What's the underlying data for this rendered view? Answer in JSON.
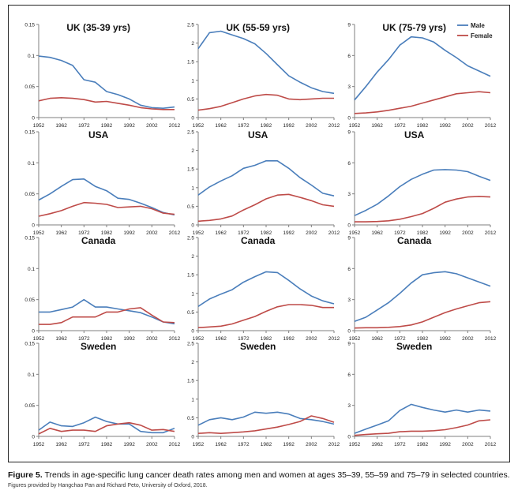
{
  "figure": {
    "caption_label": "Figure 5.",
    "caption_text": " Trends in age-specific lung cancer death rates among men and women at ages 35–39, 55–59 and 75–79 in selected countries.",
    "credit": "Figures provided by Hangchao Pan and Richard Peto, University of Oxford, 2018."
  },
  "colors": {
    "male": "#4a7ebb",
    "female": "#be4b48",
    "axis": "#7f7f7f"
  },
  "legend": {
    "male": "Male",
    "female": "Female"
  },
  "chart_data": [
    {
      "type": "line",
      "title": "UK (35-39 yrs)",
      "ylim": [
        0,
        0.15
      ],
      "yticks": [
        "0",
        "0.05",
        "0.1",
        "0.15"
      ],
      "xticks": [
        "1952",
        "1962",
        "1972",
        "1982",
        "1992",
        "2002",
        "2012"
      ],
      "x": [
        1952,
        1957,
        1962,
        1967,
        1972,
        1977,
        1982,
        1987,
        1992,
        1997,
        2002,
        2007,
        2012
      ],
      "series": [
        {
          "name": "Male",
          "values": [
            0.099,
            0.097,
            0.092,
            0.084,
            0.061,
            0.057,
            0.042,
            0.037,
            0.03,
            0.02,
            0.016,
            0.015,
            0.017
          ]
        },
        {
          "name": "Female",
          "values": [
            0.027,
            0.031,
            0.032,
            0.031,
            0.029,
            0.025,
            0.026,
            0.023,
            0.02,
            0.016,
            0.014,
            0.013,
            0.013
          ]
        }
      ]
    },
    {
      "type": "line",
      "title": "UK (55-59 yrs)",
      "ylim": [
        0,
        2.5
      ],
      "yticks": [
        "0",
        "0.5",
        "1",
        "1.5",
        "2",
        "2.5"
      ],
      "xticks": [
        "1952",
        "1962",
        "1972",
        "1982",
        "1992",
        "2002",
        "2012"
      ],
      "x": [
        1952,
        1957,
        1962,
        1967,
        1972,
        1977,
        1982,
        1987,
        1992,
        1997,
        2002,
        2007,
        2012
      ],
      "series": [
        {
          "name": "Male",
          "values": [
            1.85,
            2.28,
            2.32,
            2.22,
            2.12,
            1.98,
            1.72,
            1.42,
            1.12,
            0.95,
            0.8,
            0.7,
            0.65
          ]
        },
        {
          "name": "Female",
          "values": [
            0.2,
            0.24,
            0.3,
            0.4,
            0.5,
            0.58,
            0.62,
            0.6,
            0.5,
            0.48,
            0.5,
            0.52,
            0.52
          ]
        }
      ]
    },
    {
      "type": "line",
      "title": "UK (75-79 yrs)",
      "ylim": [
        0,
        9
      ],
      "yticks": [
        "0",
        "3",
        "6",
        "9"
      ],
      "xticks": [
        "1952",
        "1962",
        "1972",
        "1982",
        "1992",
        "2002",
        "2012"
      ],
      "x": [
        1952,
        1957,
        1962,
        1967,
        1972,
        1977,
        1982,
        1987,
        1992,
        1997,
        2002,
        2007,
        2012
      ],
      "series": [
        {
          "name": "Male",
          "values": [
            1.7,
            3.0,
            4.4,
            5.6,
            7.0,
            7.8,
            7.7,
            7.3,
            6.5,
            5.8,
            5.0,
            4.5,
            4.0
          ]
        },
        {
          "name": "Female",
          "values": [
            0.4,
            0.45,
            0.55,
            0.7,
            0.9,
            1.1,
            1.4,
            1.7,
            2.0,
            2.3,
            2.4,
            2.5,
            2.4
          ]
        }
      ]
    },
    {
      "type": "line",
      "title": "USA",
      "ylim": [
        0,
        0.15
      ],
      "yticks": [
        "0",
        "0.05",
        "0.1",
        "0.15"
      ],
      "xticks": [
        "1952",
        "1962",
        "1972",
        "1982",
        "1992",
        "2002",
        "2012"
      ],
      "x": [
        1952,
        1957,
        1962,
        1967,
        1972,
        1977,
        1982,
        1987,
        1992,
        1997,
        2002,
        2007,
        2012
      ],
      "series": [
        {
          "name": "Male",
          "values": [
            0.04,
            0.05,
            0.062,
            0.073,
            0.074,
            0.062,
            0.055,
            0.043,
            0.041,
            0.035,
            0.028,
            0.02,
            0.016
          ]
        },
        {
          "name": "Female",
          "values": [
            0.014,
            0.018,
            0.023,
            0.03,
            0.036,
            0.035,
            0.033,
            0.028,
            0.029,
            0.03,
            0.026,
            0.019,
            0.017
          ]
        }
      ]
    },
    {
      "type": "line",
      "title": "USA",
      "ylim": [
        0,
        2.5
      ],
      "yticks": [
        "0",
        "0.5",
        "1",
        "1.5",
        "2",
        "2.5"
      ],
      "xticks": [
        "1952",
        "1962",
        "1972",
        "1982",
        "1992",
        "2002",
        "2012"
      ],
      "x": [
        1952,
        1957,
        1962,
        1967,
        1972,
        1977,
        1982,
        1987,
        1992,
        1997,
        2002,
        2007,
        2012
      ],
      "series": [
        {
          "name": "Male",
          "values": [
            0.8,
            1.02,
            1.18,
            1.32,
            1.52,
            1.6,
            1.72,
            1.72,
            1.52,
            1.27,
            1.07,
            0.85,
            0.78
          ]
        },
        {
          "name": "Female",
          "values": [
            0.1,
            0.12,
            0.16,
            0.24,
            0.4,
            0.54,
            0.7,
            0.8,
            0.82,
            0.74,
            0.65,
            0.54,
            0.5
          ]
        }
      ]
    },
    {
      "type": "line",
      "title": "USA",
      "ylim": [
        0,
        9
      ],
      "yticks": [
        "0",
        "3",
        "6",
        "9"
      ],
      "xticks": [
        "1952",
        "1962",
        "1972",
        "1982",
        "1992",
        "2002",
        "2012"
      ],
      "x": [
        1952,
        1957,
        1962,
        1967,
        1972,
        1977,
        1982,
        1987,
        1992,
        1997,
        2002,
        2007,
        2012
      ],
      "series": [
        {
          "name": "Male",
          "values": [
            0.9,
            1.4,
            2.0,
            2.8,
            3.7,
            4.4,
            4.9,
            5.3,
            5.35,
            5.3,
            5.15,
            4.7,
            4.3
          ]
        },
        {
          "name": "Female",
          "values": [
            0.3,
            0.3,
            0.33,
            0.4,
            0.55,
            0.8,
            1.1,
            1.6,
            2.2,
            2.5,
            2.7,
            2.75,
            2.7
          ]
        }
      ]
    },
    {
      "type": "line",
      "title": "Canada",
      "ylim": [
        0,
        0.15
      ],
      "yticks": [
        "0",
        "0.05",
        "0.1",
        "0.15"
      ],
      "xticks": [
        "1952",
        "1962",
        "1972",
        "1982",
        "1992",
        "2002",
        "2012"
      ],
      "x": [
        1952,
        1957,
        1962,
        1967,
        1972,
        1977,
        1982,
        1987,
        1992,
        1997,
        2002,
        2007,
        2012
      ],
      "series": [
        {
          "name": "Male",
          "values": [
            0.03,
            0.03,
            0.034,
            0.038,
            0.05,
            0.038,
            0.038,
            0.035,
            0.032,
            0.029,
            0.022,
            0.014,
            0.011
          ]
        },
        {
          "name": "Female",
          "values": [
            0.01,
            0.01,
            0.013,
            0.022,
            0.022,
            0.022,
            0.03,
            0.03,
            0.035,
            0.037,
            0.025,
            0.014,
            0.013
          ]
        }
      ]
    },
    {
      "type": "line",
      "title": "Canada",
      "ylim": [
        0,
        2.5
      ],
      "yticks": [
        "0",
        "0.5",
        "1",
        "1.5",
        "2",
        "2.5"
      ],
      "xticks": [
        "1952",
        "1962",
        "1972",
        "1982",
        "1992",
        "2002",
        "2012"
      ],
      "x": [
        1952,
        1957,
        1962,
        1967,
        1972,
        1977,
        1982,
        1987,
        1992,
        1997,
        2002,
        2007,
        2012
      ],
      "series": [
        {
          "name": "Male",
          "values": [
            0.65,
            0.85,
            0.98,
            1.1,
            1.3,
            1.45,
            1.58,
            1.56,
            1.35,
            1.12,
            0.93,
            0.8,
            0.72
          ]
        },
        {
          "name": "Female",
          "values": [
            0.08,
            0.1,
            0.12,
            0.18,
            0.28,
            0.38,
            0.52,
            0.64,
            0.7,
            0.7,
            0.68,
            0.62,
            0.62
          ]
        }
      ]
    },
    {
      "type": "line",
      "title": "Canada",
      "ylim": [
        0,
        9
      ],
      "yticks": [
        "0",
        "3",
        "6",
        "9"
      ],
      "xticks": [
        "1952",
        "1962",
        "1972",
        "1982",
        "1992",
        "2002",
        "2012"
      ],
      "x": [
        1952,
        1957,
        1962,
        1967,
        1972,
        1977,
        1982,
        1987,
        1992,
        1997,
        2002,
        2007,
        2012
      ],
      "series": [
        {
          "name": "Male",
          "values": [
            0.9,
            1.3,
            2.0,
            2.7,
            3.6,
            4.6,
            5.4,
            5.6,
            5.7,
            5.5,
            5.1,
            4.7,
            4.3
          ]
        },
        {
          "name": "Female",
          "values": [
            0.25,
            0.28,
            0.28,
            0.32,
            0.4,
            0.55,
            0.85,
            1.3,
            1.75,
            2.1,
            2.4,
            2.7,
            2.8
          ]
        }
      ]
    },
    {
      "type": "line",
      "title": "Sweden",
      "ylim": [
        0,
        0.15
      ],
      "yticks": [
        "0",
        "0.05",
        "0.1",
        "0.15"
      ],
      "xticks": [
        "1952",
        "1962",
        "1972",
        "1982",
        "1992",
        "2002",
        "2012"
      ],
      "x": [
        1952,
        1957,
        1962,
        1967,
        1972,
        1977,
        1982,
        1987,
        1992,
        1997,
        2002,
        2007,
        2012
      ],
      "series": [
        {
          "name": "Male",
          "values": [
            0.01,
            0.023,
            0.017,
            0.016,
            0.022,
            0.031,
            0.024,
            0.02,
            0.02,
            0.008,
            0.006,
            0.006,
            0.013
          ]
        },
        {
          "name": "Female",
          "values": [
            0.004,
            0.013,
            0.008,
            0.01,
            0.01,
            0.008,
            0.017,
            0.02,
            0.022,
            0.018,
            0.01,
            0.011,
            0.008
          ]
        }
      ]
    },
    {
      "type": "line",
      "title": "Sweden",
      "ylim": [
        0,
        2.5
      ],
      "yticks": [
        "0",
        "0.5",
        "1",
        "1.5",
        "2",
        "2.5"
      ],
      "xticks": [
        "1952",
        "1962",
        "1972",
        "1982",
        "1992",
        "2002",
        "2012"
      ],
      "x": [
        1952,
        1957,
        1962,
        1967,
        1972,
        1977,
        1982,
        1987,
        1992,
        1997,
        2002,
        2007,
        2012
      ],
      "series": [
        {
          "name": "Male",
          "values": [
            0.3,
            0.45,
            0.5,
            0.45,
            0.52,
            0.65,
            0.62,
            0.65,
            0.6,
            0.48,
            0.45,
            0.4,
            0.33
          ]
        },
        {
          "name": "Female",
          "values": [
            0.08,
            0.1,
            0.08,
            0.1,
            0.12,
            0.15,
            0.2,
            0.25,
            0.32,
            0.4,
            0.55,
            0.48,
            0.38
          ]
        }
      ]
    },
    {
      "type": "line",
      "title": "Sweden",
      "ylim": [
        0,
        9
      ],
      "yticks": [
        "0",
        "3",
        "6",
        "9"
      ],
      "xticks": [
        "1952",
        "1962",
        "1972",
        "1982",
        "1992",
        "2002",
        "2012"
      ],
      "x": [
        1952,
        1957,
        1962,
        1967,
        1972,
        1977,
        1982,
        1987,
        1992,
        1997,
        2002,
        2007,
        2012
      ],
      "series": [
        {
          "name": "Male",
          "values": [
            0.3,
            0.7,
            1.1,
            1.5,
            2.5,
            3.1,
            2.8,
            2.55,
            2.35,
            2.55,
            2.35,
            2.55,
            2.45
          ]
        },
        {
          "name": "Female",
          "values": [
            0.1,
            0.18,
            0.25,
            0.3,
            0.45,
            0.5,
            0.5,
            0.55,
            0.65,
            0.85,
            1.1,
            1.5,
            1.6
          ]
        }
      ]
    }
  ]
}
